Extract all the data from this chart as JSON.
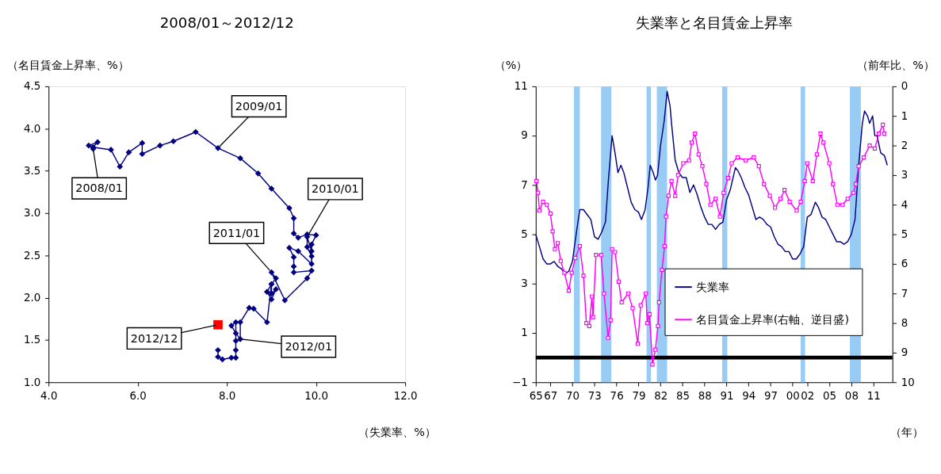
{
  "chart_data": [
    {
      "type": "line",
      "title": "2008/01～2012/12",
      "xlabel": "（失業率、%）",
      "ylabel": "（名目賃金上昇率、%）",
      "xlim": [
        4,
        12
      ],
      "xticks": [
        {
          "value": 4,
          "label": "4.0"
        },
        {
          "value": 6,
          "label": "6.0"
        },
        {
          "value": 8,
          "label": "8.0"
        },
        {
          "value": 10,
          "label": "10.0"
        },
        {
          "value": 12,
          "label": "12.0"
        }
      ],
      "ylim": [
        1,
        4.5
      ],
      "yticks": [
        {
          "value": 1,
          "label": "1.0"
        },
        1.5,
        {
          "value": 2,
          "label": "2.0"
        },
        2.5,
        {
          "value": 3,
          "label": "3.0"
        },
        3.5,
        {
          "value": 4,
          "label": "4.0"
        },
        4.5
      ],
      "grid": false,
      "legend": false,
      "series": [
        {
          "color": "#000080",
          "marker": "diamond",
          "x": [
            5.0,
            4.9,
            5.1,
            5.0,
            5.4,
            5.6,
            5.8,
            6.1,
            6.1,
            6.5,
            6.8,
            7.3,
            7.8,
            8.3,
            8.7,
            9.0,
            9.4,
            9.5,
            9.5,
            9.6,
            9.8,
            10.0,
            9.9,
            9.9,
            9.8,
            9.8,
            9.9,
            9.9,
            9.6,
            9.4,
            9.5,
            9.5,
            9.5,
            9.9,
            9.8,
            9.3,
            9.0,
            9.1,
            9.0,
            8.9,
            9.0,
            9.1,
            9.0,
            9.0,
            8.9,
            8.6,
            8.5,
            8.3,
            8.3,
            8.2,
            8.1,
            8.2,
            8.2,
            8.2,
            8.2,
            8.1,
            7.9,
            7.8,
            7.8
          ],
          "values": [
            3.76,
            3.8,
            3.84,
            3.78,
            3.75,
            3.55,
            3.72,
            3.83,
            3.7,
            3.8,
            3.85,
            3.96,
            3.77,
            3.65,
            3.47,
            3.29,
            3.06,
            2.94,
            2.76,
            2.71,
            2.75,
            2.74,
            2.63,
            2.55,
            2.72,
            2.6,
            2.49,
            2.4,
            2.55,
            2.59,
            2.48,
            2.37,
            2.3,
            2.32,
            2.23,
            1.97,
            2.3,
            2.23,
            2.16,
            2.07,
            1.98,
            2.1,
            2.05,
            2.16,
            1.71,
            1.87,
            1.88,
            1.71,
            1.51,
            1.58,
            1.67,
            1.71,
            1.49,
            1.38,
            1.29,
            1.29,
            1.27,
            1.3,
            1.38
          ]
        },
        {
          "type": "scatter",
          "color": "#ff0000",
          "marker": "square",
          "x": [
            7.8
          ],
          "values": [
            1.68
          ]
        }
      ],
      "annotations": [
        {
          "text": "2008/01",
          "x": 5.0,
          "y": 3.76
        },
        {
          "text": "2009/01",
          "x": 7.8,
          "y": 3.77
        },
        {
          "text": "2010/01",
          "x": 9.8,
          "y": 2.72
        },
        {
          "text": "2011/01",
          "x": 9.0,
          "y": 2.3
        },
        {
          "text": "2012/01",
          "x": 8.3,
          "y": 1.51
        },
        {
          "text": "2012/12",
          "x": 7.8,
          "y": 1.68
        }
      ]
    },
    {
      "type": "line",
      "title": "失業率と名目賃金上昇率",
      "xlabel": "（年）",
      "ylabel": "（%）",
      "y2label": "（前年比、%）",
      "xlim": [
        1965,
        2013.6
      ],
      "xticks": [
        {
          "value": 1965,
          "label": "65"
        },
        {
          "value": 1967,
          "label": "67"
        },
        {
          "value": 1970,
          "label": "70"
        },
        {
          "value": 1973,
          "label": "73"
        },
        {
          "value": 1976,
          "label": "76"
        },
        {
          "value": 1979,
          "label": "79"
        },
        {
          "value": 1982,
          "label": "82"
        },
        {
          "value": 1985,
          "label": "85"
        },
        {
          "value": 1988,
          "label": "88"
        },
        {
          "value": 1991,
          "label": "91"
        },
        {
          "value": 1994,
          "label": "94"
        },
        {
          "value": 1997,
          "label": "97"
        },
        {
          "value": 2000,
          "label": "00"
        },
        {
          "value": 2002,
          "label": "02"
        },
        {
          "value": 2005,
          "label": "05"
        },
        {
          "value": 2008,
          "label": "08"
        },
        {
          "value": 2011,
          "label": "11"
        }
      ],
      "ylim": [
        -1,
        11
      ],
      "yticks": [
        -1,
        1,
        3,
        5,
        7,
        9,
        11
      ],
      "y2lim": [
        10,
        0
      ],
      "y2ticks": [
        0,
        1,
        2,
        3,
        4,
        5,
        6,
        7,
        8,
        9,
        10
      ],
      "grid": false,
      "legend": "bottom right",
      "series": [
        {
          "name": "失業率",
          "color": "#000080",
          "marker": "none",
          "x": [
            1965.0,
            1965.5,
            1966.0,
            1966.5,
            1967.0,
            1967.5,
            1968.0,
            1968.5,
            1969.0,
            1969.5,
            1970.0,
            1970.5,
            1971.0,
            1971.5,
            1972.0,
            1972.5,
            1973.0,
            1973.5,
            1974.0,
            1974.5,
            1974.9,
            1975.4,
            1975.8,
            1976.2,
            1976.6,
            1977.0,
            1977.5,
            1978.0,
            1978.5,
            1979.0,
            1979.4,
            1979.9,
            1980.3,
            1980.6,
            1981.0,
            1981.3,
            1981.6,
            1982.0,
            1982.5,
            1982.9,
            1983.3,
            1983.5,
            1984.0,
            1984.5,
            1985.0,
            1985.5,
            1986.0,
            1986.5,
            1987.0,
            1987.5,
            1988.0,
            1988.5,
            1989.0,
            1989.5,
            1990.0,
            1990.5,
            1991.0,
            1991.5,
            1992.2,
            1992.5,
            1993.0,
            1993.5,
            1994.0,
            1994.5,
            1995.0,
            1995.5,
            1996.0,
            1996.5,
            1997.0,
            1997.5,
            1998.0,
            1998.5,
            1999.0,
            1999.5,
            2000.0,
            2000.5,
            2001.0,
            2001.5,
            2002.0,
            2002.5,
            2003.1,
            2003.5,
            2004.0,
            2004.5,
            2005.0,
            2005.5,
            2006.0,
            2006.5,
            2007.0,
            2007.5,
            2008.0,
            2008.5,
            2009.0,
            2009.5,
            2009.8,
            2010.2,
            2010.5,
            2010.9,
            2011.2,
            2011.5,
            2012.0,
            2012.5,
            2012.9
          ],
          "values": [
            5.0,
            4.5,
            4.0,
            3.8,
            3.8,
            3.9,
            3.7,
            3.6,
            3.4,
            3.5,
            3.9,
            5.0,
            6.0,
            6.0,
            5.8,
            5.6,
            4.9,
            4.8,
            5.1,
            5.5,
            7.2,
            9.0,
            8.3,
            7.5,
            7.8,
            7.5,
            6.9,
            6.3,
            6.0,
            5.9,
            5.6,
            6.0,
            6.9,
            7.8,
            7.5,
            7.2,
            7.4,
            8.6,
            9.6,
            10.8,
            10.2,
            9.5,
            8.0,
            7.5,
            7.3,
            7.3,
            6.7,
            7.0,
            6.6,
            6.1,
            5.7,
            5.4,
            5.4,
            5.2,
            5.4,
            5.5,
            6.4,
            6.8,
            7.7,
            7.6,
            7.3,
            6.9,
            6.6,
            6.1,
            5.6,
            5.7,
            5.6,
            5.4,
            5.3,
            4.9,
            4.6,
            4.5,
            4.3,
            4.3,
            4.0,
            4.0,
            4.2,
            4.5,
            5.7,
            5.8,
            6.3,
            6.1,
            5.7,
            5.6,
            5.3,
            5.0,
            4.7,
            4.7,
            4.6,
            4.7,
            5.0,
            5.6,
            7.8,
            9.5,
            10.0,
            9.8,
            9.5,
            9.8,
            9.0,
            9.0,
            8.3,
            8.2,
            7.8
          ]
        },
        {
          "name": "名目賃金上昇率(右軸、逆目盛)",
          "color": "#ff00ff",
          "marker": "square",
          "axis": "y2",
          "x": [
            1965.1,
            1965.3,
            1965.5,
            1966.0,
            1966.5,
            1967.0,
            1967.3,
            1967.6,
            1968.0,
            1968.4,
            1968.9,
            1969.5,
            1969.9,
            1970.4,
            1971.0,
            1971.5,
            1971.9,
            1972.3,
            1972.65,
            1972.8,
            1973.2,
            1973.9,
            1974.3,
            1974.86,
            1975.2,
            1975.4,
            1975.8,
            1976.3,
            1976.7,
            1977.6,
            1978.2,
            1978.9,
            1979.3,
            1980.0,
            1980.2,
            1980.5,
            1980.9,
            1981.3,
            1981.65,
            1981.8,
            1982.2,
            1982.55,
            1982.75,
            1983.1,
            1983.5,
            1984.0,
            1984.4,
            1985.1,
            1985.9,
            1986.25,
            1986.7,
            1987.2,
            1987.7,
            1988.25,
            1988.8,
            1989.5,
            1990.1,
            1990.6,
            1991.2,
            1991.7,
            1992.5,
            1993.6,
            1994.7,
            1995.4,
            1996.1,
            1996.9,
            1997.6,
            1998.35,
            1998.9,
            1999.6,
            2000.55,
            2001.1,
            2001.65,
            2002.0,
            2002.75,
            2003.3,
            2003.8,
            2004.2,
            2005.0,
            2005.5,
            2006.1,
            2006.8,
            2007.5,
            2008.3,
            2008.6,
            2009.0,
            2009.7,
            2010.5,
            2011.2,
            2011.75,
            2012.3,
            2012.5
          ],
          "values": [
            3.2,
            3.6,
            4.2,
            3.9,
            4.0,
            4.3,
            4.9,
            5.5,
            5.3,
            5.9,
            6.3,
            6.9,
            6.3,
            5.8,
            5.4,
            6.4,
            8.0,
            8.1,
            7.1,
            7.8,
            5.7,
            5.7,
            7.0,
            8.5,
            7.9,
            5.5,
            5.6,
            6.6,
            7.3,
            7.0,
            7.5,
            8.7,
            7.4,
            7.0,
            8.0,
            7.7,
            9.4,
            8.9,
            8.1,
            7.3,
            6.2,
            5.4,
            4.4,
            3.7,
            3.2,
            3.7,
            3.0,
            2.6,
            2.5,
            1.9,
            1.6,
            2.3,
            2.7,
            3.3,
            4.0,
            3.8,
            4.4,
            3.6,
            3.1,
            2.6,
            2.4,
            2.5,
            2.4,
            2.7,
            3.3,
            3.7,
            4.1,
            3.8,
            3.5,
            3.9,
            4.2,
            3.9,
            3.2,
            2.6,
            3.2,
            2.3,
            1.6,
            1.9,
            2.6,
            3.3,
            4.0,
            4.0,
            3.8,
            3.6,
            3.3,
            2.7,
            2.4,
            2.0,
            2.1,
            1.6,
            1.3,
            1.6
          ]
        }
      ],
      "ref_lines": [
        {
          "axis": "y",
          "value": 0,
          "color": "#000000"
        }
      ],
      "bands": [
        {
          "axis": "x",
          "from": 1970.2,
          "to": 1971.0,
          "color": "#99ccf5"
        },
        {
          "axis": "x",
          "from": 1973.9,
          "to": 1975.3,
          "color": "#99ccf5"
        },
        {
          "axis": "x",
          "from": 1980.1,
          "to": 1980.7,
          "color": "#99ccf5"
        },
        {
          "axis": "x",
          "from": 1981.5,
          "to": 1982.9,
          "color": "#99ccf5"
        },
        {
          "axis": "x",
          "from": 1990.4,
          "to": 1991.1,
          "color": "#99ccf5"
        },
        {
          "axis": "x",
          "from": 2001.1,
          "to": 2001.7,
          "color": "#99ccf5"
        },
        {
          "axis": "x",
          "from": 2007.8,
          "to": 2009.3,
          "color": "#99ccf5"
        }
      ]
    }
  ]
}
